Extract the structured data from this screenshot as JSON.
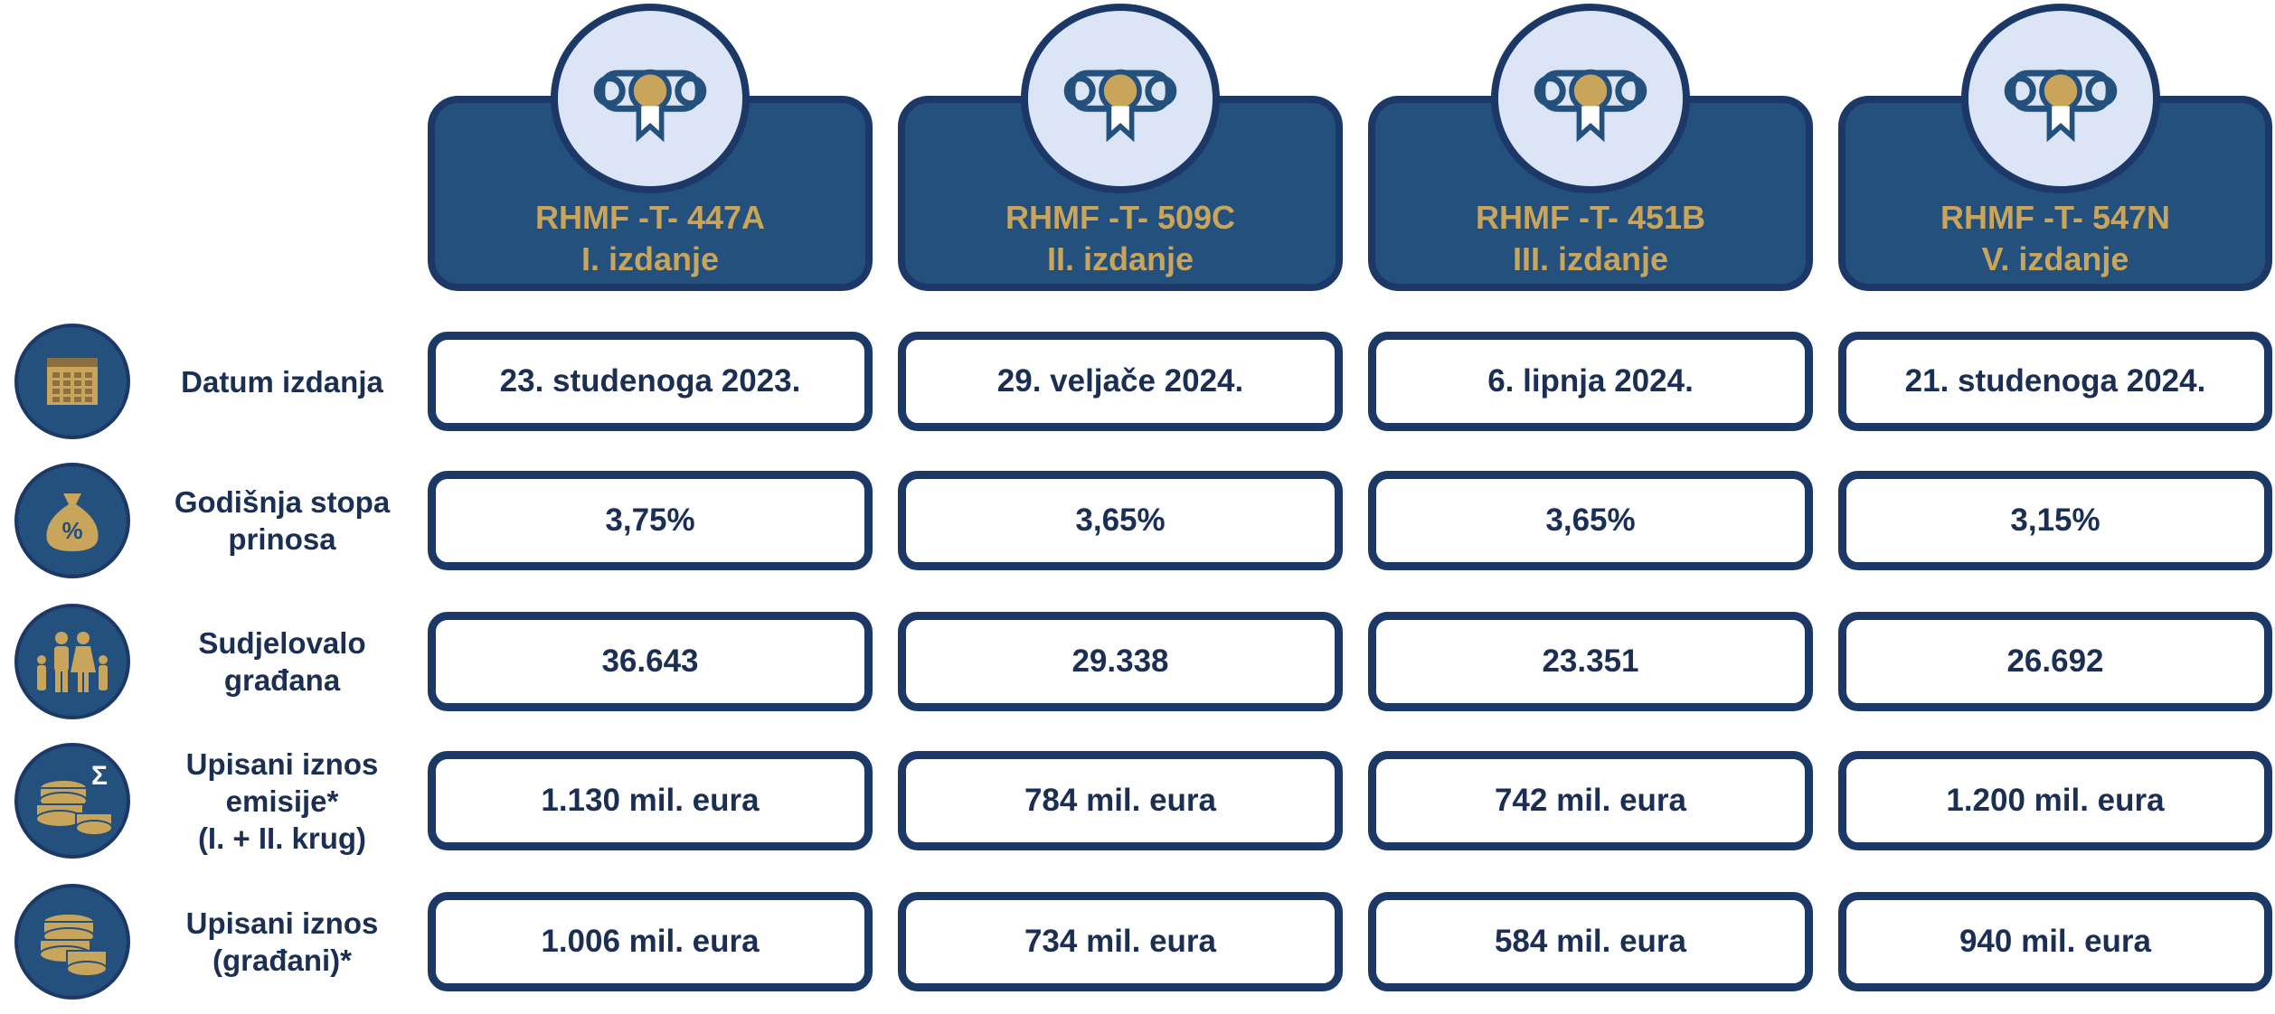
{
  "columns": [
    {
      "code": "RHMF -T- 447A",
      "edition": "I. izdanje"
    },
    {
      "code": "RHMF -T- 509C",
      "edition": "II. izdanje"
    },
    {
      "code": "RHMF -T- 451B",
      "edition": "III. izdanje"
    },
    {
      "code": "RHMF -T- 547N",
      "edition": "V. izdanje"
    }
  ],
  "rows": [
    {
      "label": [
        "Datum izdanja"
      ],
      "values": [
        "23. studenoga 2023.",
        "29. veljače 2024.",
        "6. lipnja 2024.",
        "21. studenoga 2024."
      ]
    },
    {
      "label": [
        "Godišnja stopa",
        "prinosa"
      ],
      "icon_text": "%",
      "values": [
        "3,75%",
        "3,65%",
        "3,65%",
        "3,15%"
      ]
    },
    {
      "label": [
        "Sudjelovalo",
        "građana"
      ],
      "values": [
        "36.643",
        "29.338",
        "23.351",
        "26.692"
      ]
    },
    {
      "label": [
        "Upisani iznos",
        "emisije*",
        "(I. + II. krug)"
      ],
      "icon_text": "Σ",
      "values": [
        "1.130 mil. eura",
        "784 mil. eura",
        "742 mil. eura",
        "1.200 mil. eura"
      ]
    },
    {
      "label": [
        "Upisani iznos",
        "(građani)*"
      ],
      "values": [
        "1.006 mil. eura",
        "734 mil. eura",
        "584 mil. eura",
        "940 mil. eura"
      ]
    }
  ]
}
